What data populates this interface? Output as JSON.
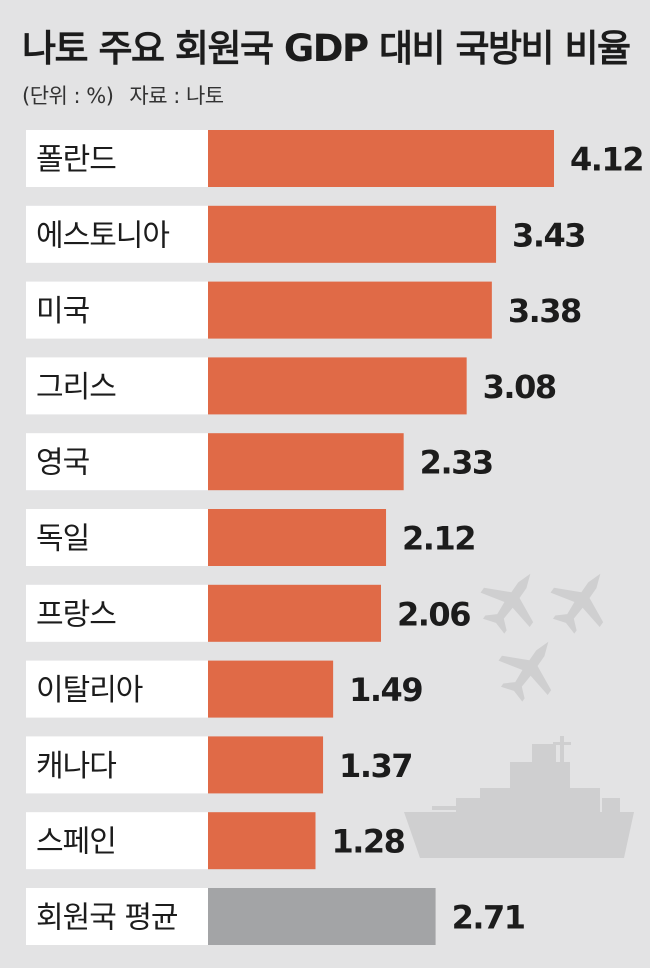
{
  "header": {
    "title": "나토 주요 회원국 GDP 대비 국방비 비율",
    "unit": "(단위 : %)",
    "source": "자료 : 나토"
  },
  "colors": {
    "bar": "#e06a47",
    "average_bar": "#a3a4a6",
    "background": "#e3e3e4",
    "label_box": "#ffffff",
    "decoration": "#cfcfd0"
  },
  "decorations": [
    "fighter-jet-icon",
    "fighter-jet-icon",
    "fighter-jet-icon",
    "warship-icon"
  ],
  "chart_data": {
    "type": "bar",
    "orientation": "horizontal",
    "categories": [
      "폴란드",
      "에스토니아",
      "미국",
      "그리스",
      "영국",
      "독일",
      "프랑스",
      "이탈리아",
      "캐나다",
      "스페인",
      "회원국 평균"
    ],
    "values": [
      4.12,
      3.43,
      3.38,
      3.08,
      2.33,
      2.12,
      2.06,
      1.49,
      1.37,
      1.28,
      2.71
    ],
    "value_labels": [
      "4.12",
      "3.43",
      "3.38",
      "3.08",
      "2.33",
      "2.12",
      "2.06",
      "1.49",
      "1.37",
      "1.28",
      "2.71"
    ],
    "highlight_category": "회원국 평균",
    "xlim": [
      0,
      4.5
    ],
    "grid": false,
    "legend": "none"
  }
}
